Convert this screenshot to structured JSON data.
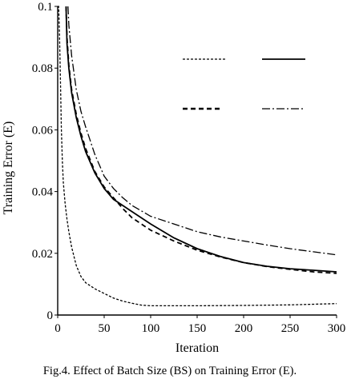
{
  "chart_data": {
    "type": "line",
    "title": "",
    "xlabel": "Iteration",
    "ylabel": "Training Error (E)",
    "xlim": [
      0,
      300
    ],
    "ylim": [
      0,
      0.1
    ],
    "xticks": [
      0,
      50,
      100,
      150,
      200,
      250,
      300
    ],
    "yticks": [
      0,
      0.02,
      0.04,
      0.06,
      0.08,
      0.1
    ],
    "xtick_labels": [
      "0",
      "50",
      "100",
      "150",
      "200",
      "250",
      "300"
    ],
    "ytick_labels": [
      "0",
      "0.02",
      "0.04",
      "0.06",
      "0.08",
      "0.1"
    ],
    "grid": false,
    "legend": "top-right, 2 columns, line samples without visible text",
    "series": [
      {
        "style": "dotted",
        "color": "#000000",
        "x": [
          0,
          1,
          2,
          3,
          4,
          5,
          6,
          8,
          10,
          12,
          15,
          20,
          25,
          30,
          40,
          50,
          60,
          70,
          80,
          90,
          100,
          120,
          150,
          200,
          250,
          300
        ],
        "y": [
          0.1,
          0.1,
          0.09,
          0.075,
          0.06,
          0.05,
          0.043,
          0.036,
          0.031,
          0.027,
          0.022,
          0.016,
          0.0125,
          0.0105,
          0.0085,
          0.007,
          0.0055,
          0.0045,
          0.0038,
          0.0032,
          0.003,
          0.003,
          0.003,
          0.0031,
          0.0033,
          0.0037
        ]
      },
      {
        "style": "solid",
        "color": "#000000",
        "x": [
          9,
          10,
          12,
          15,
          20,
          25,
          30,
          40,
          50,
          60,
          70,
          80,
          100,
          125,
          150,
          175,
          200,
          225,
          250,
          275,
          300
        ],
        "y": [
          0.1,
          0.088,
          0.08,
          0.072,
          0.064,
          0.058,
          0.053,
          0.046,
          0.041,
          0.0375,
          0.0355,
          0.0335,
          0.0295,
          0.025,
          0.0215,
          0.019,
          0.017,
          0.0158,
          0.015,
          0.0145,
          0.014
        ]
      },
      {
        "style": "dashed",
        "color": "#000000",
        "x": [
          9,
          10,
          12,
          15,
          20,
          25,
          30,
          40,
          50,
          60,
          70,
          80,
          100,
          125,
          150,
          175,
          200,
          225,
          250,
          275,
          300
        ],
        "y": [
          0.1,
          0.09,
          0.081,
          0.073,
          0.065,
          0.059,
          0.054,
          0.0465,
          0.0415,
          0.038,
          0.0345,
          0.0315,
          0.0275,
          0.024,
          0.021,
          0.0188,
          0.017,
          0.0157,
          0.0148,
          0.014,
          0.0135
        ]
      },
      {
        "style": "dash-dot",
        "color": "#000000",
        "x": [
          11,
          12,
          15,
          20,
          25,
          30,
          40,
          50,
          60,
          70,
          80,
          100,
          125,
          150,
          175,
          200,
          225,
          250,
          275,
          300
        ],
        "y": [
          0.1,
          0.094,
          0.084,
          0.073,
          0.066,
          0.061,
          0.052,
          0.045,
          0.041,
          0.038,
          0.0355,
          0.032,
          0.0295,
          0.027,
          0.0253,
          0.024,
          0.0227,
          0.0215,
          0.0205,
          0.0195
        ]
      }
    ]
  },
  "caption": "Fig.4. Effect of Batch Size (BS) on Training Error (E)."
}
